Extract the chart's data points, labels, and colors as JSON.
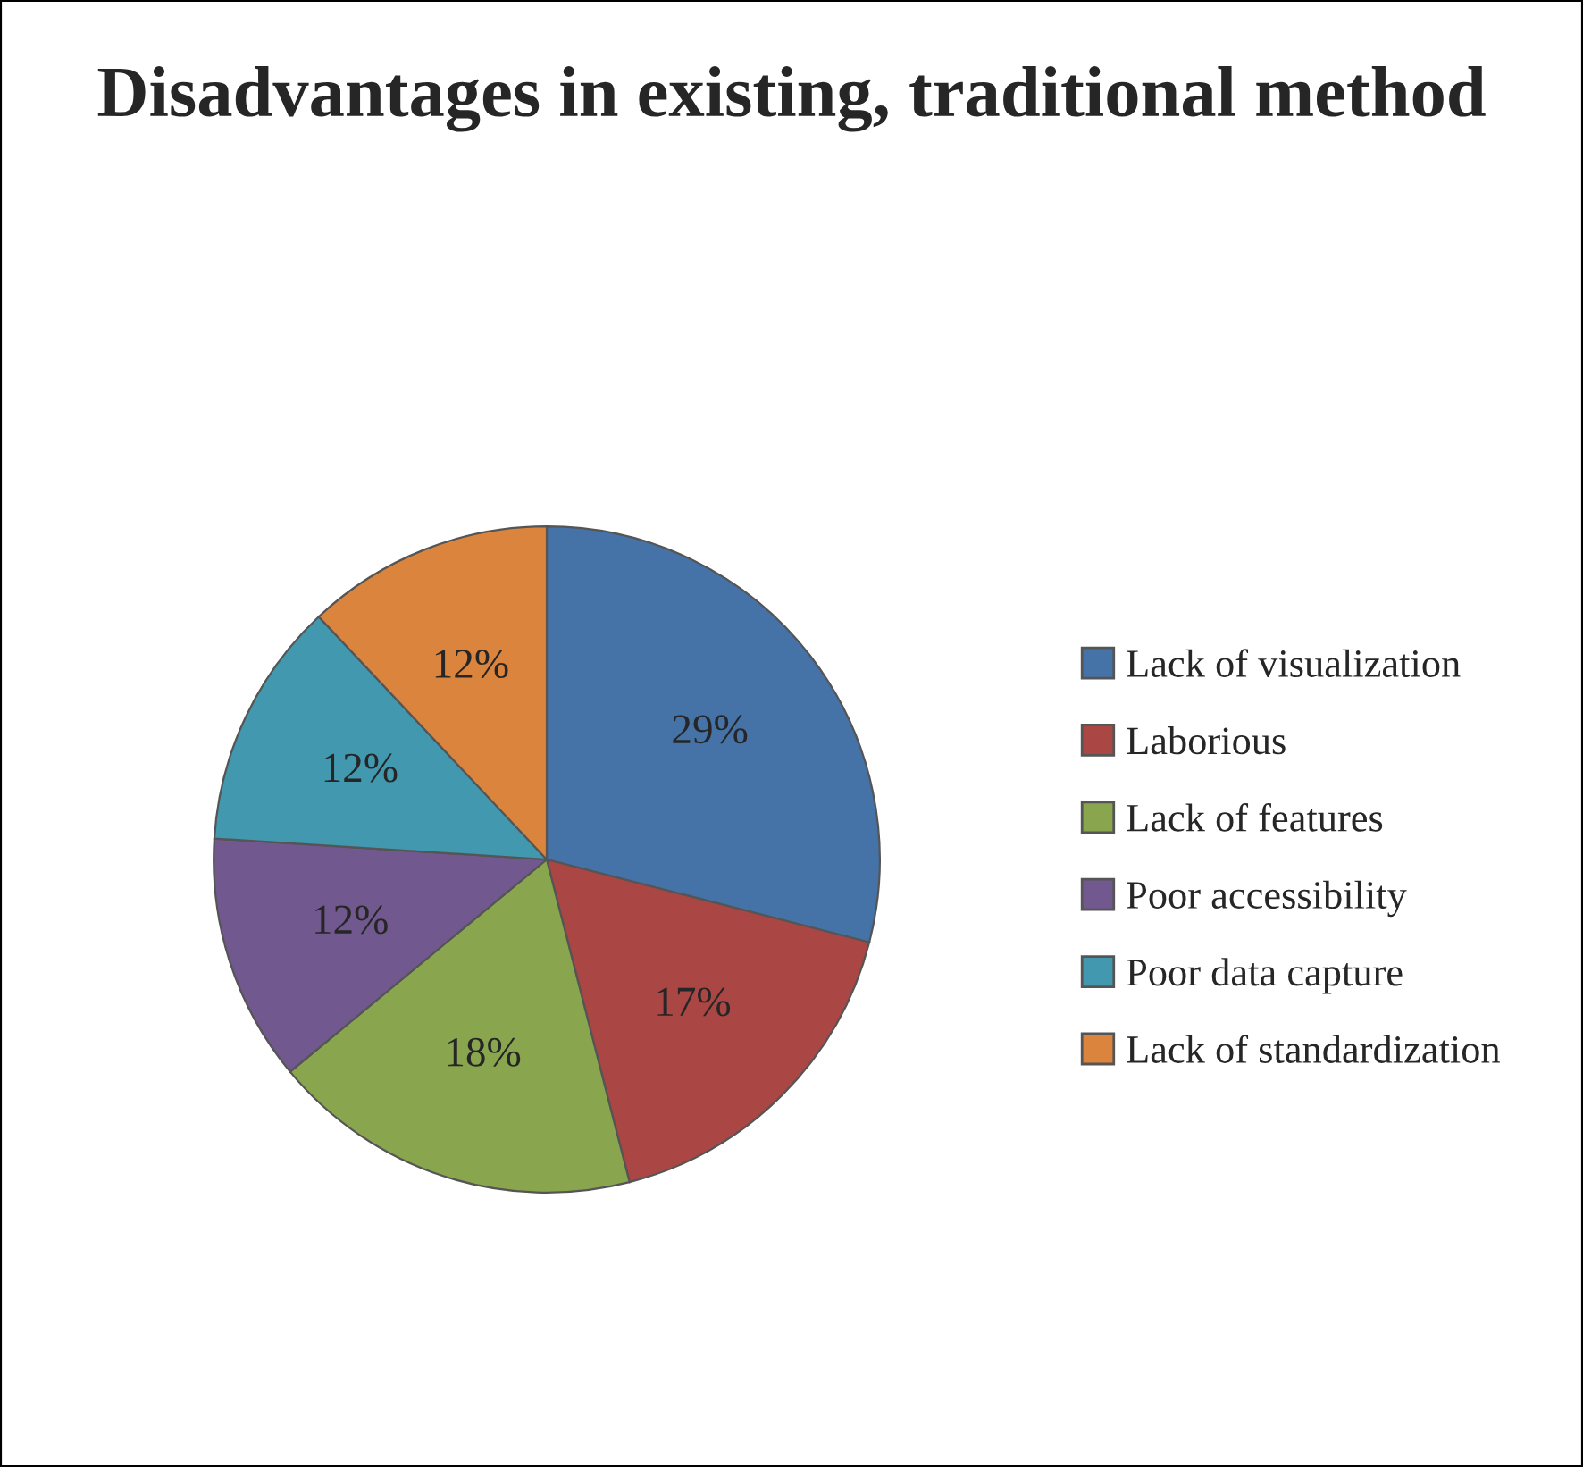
{
  "chart_data": {
    "type": "pie",
    "title": "Disadvantages in existing, traditional method",
    "categories": [
      "Lack of visualization",
      "Laborious",
      "Lack of features",
      "Poor accessibility",
      "Poor data capture",
      "Lack of standardization"
    ],
    "values": [
      29,
      17,
      18,
      12,
      12,
      12
    ],
    "value_labels": [
      "29%",
      "17%",
      "18%",
      "12%",
      "12%",
      "12%"
    ],
    "colors": [
      "#4572a7",
      "#aa4643",
      "#89a54e",
      "#71588f",
      "#4198af",
      "#db843d"
    ],
    "legend": "right"
  }
}
